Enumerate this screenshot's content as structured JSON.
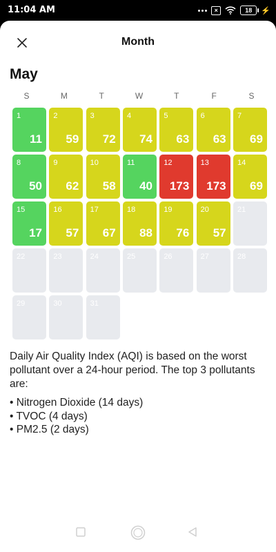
{
  "status": {
    "time": "11:04 AM",
    "battery": "18"
  },
  "header": {
    "title": "Month",
    "close_icon": "close-icon"
  },
  "calendar": {
    "month": "May",
    "weekdays": [
      "S",
      "M",
      "T",
      "W",
      "T",
      "F",
      "S"
    ],
    "colors": {
      "good": "#55d45f",
      "moderate": "#d6d61c",
      "unhealthy": "#e03a2e",
      "empty": "#e8eaee"
    },
    "days": [
      {
        "day": "1",
        "aqi": "11",
        "level": "green"
      },
      {
        "day": "2",
        "aqi": "59",
        "level": "yellow"
      },
      {
        "day": "3",
        "aqi": "72",
        "level": "yellow"
      },
      {
        "day": "4",
        "aqi": "74",
        "level": "yellow"
      },
      {
        "day": "5",
        "aqi": "63",
        "level": "yellow"
      },
      {
        "day": "6",
        "aqi": "63",
        "level": "yellow"
      },
      {
        "day": "7",
        "aqi": "69",
        "level": "yellow"
      },
      {
        "day": "8",
        "aqi": "50",
        "level": "green"
      },
      {
        "day": "9",
        "aqi": "62",
        "level": "yellow"
      },
      {
        "day": "10",
        "aqi": "58",
        "level": "yellow"
      },
      {
        "day": "11",
        "aqi": "40",
        "level": "green"
      },
      {
        "day": "12",
        "aqi": "173",
        "level": "red"
      },
      {
        "day": "13",
        "aqi": "173",
        "level": "red"
      },
      {
        "day": "14",
        "aqi": "69",
        "level": "yellow"
      },
      {
        "day": "15",
        "aqi": "17",
        "level": "green"
      },
      {
        "day": "16",
        "aqi": "57",
        "level": "yellow"
      },
      {
        "day": "17",
        "aqi": "67",
        "level": "yellow"
      },
      {
        "day": "18",
        "aqi": "88",
        "level": "yellow"
      },
      {
        "day": "19",
        "aqi": "76",
        "level": "yellow"
      },
      {
        "day": "20",
        "aqi": "57",
        "level": "yellow"
      },
      {
        "day": "21",
        "aqi": "",
        "level": "empty"
      },
      {
        "day": "22",
        "aqi": "",
        "level": "empty"
      },
      {
        "day": "23",
        "aqi": "",
        "level": "empty"
      },
      {
        "day": "24",
        "aqi": "",
        "level": "empty"
      },
      {
        "day": "25",
        "aqi": "",
        "level": "empty"
      },
      {
        "day": "26",
        "aqi": "",
        "level": "empty"
      },
      {
        "day": "27",
        "aqi": "",
        "level": "empty"
      },
      {
        "day": "28",
        "aqi": "",
        "level": "empty"
      },
      {
        "day": "29",
        "aqi": "",
        "level": "empty"
      },
      {
        "day": "30",
        "aqi": "",
        "level": "empty"
      },
      {
        "day": "31",
        "aqi": "",
        "level": "empty"
      }
    ]
  },
  "info": {
    "description": "Daily Air Quality Index (AQI) is based on the worst pollutant over a 24-hour period. The top 3 pollutants are:",
    "pollutants": [
      "Nitrogen Dioxide (14 days)",
      "TVOC (4 days)",
      "PM2.5 (2 days)"
    ]
  }
}
